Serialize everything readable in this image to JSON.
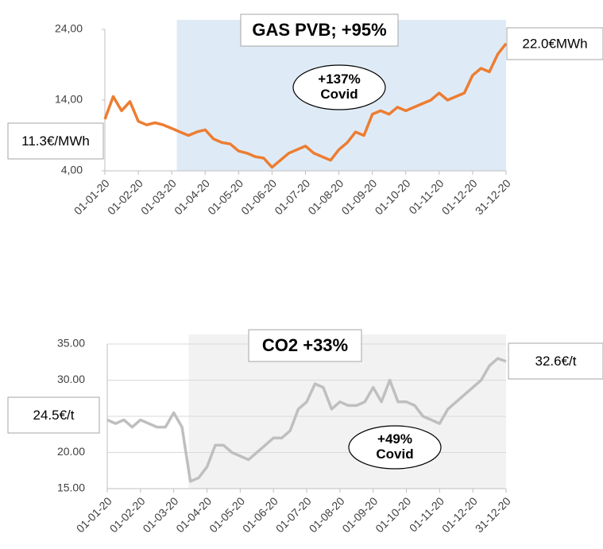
{
  "chart_data": [
    {
      "type": "line",
      "title": "GAS PVB; +95%",
      "start_label": "11.3€/MWh",
      "end_label": "22.0€MWh",
      "note": [
        "+137%",
        "Covid"
      ],
      "color": "#ed7d31",
      "shade": "#deebf7",
      "categories": [
        "01-01-20",
        null,
        null,
        null,
        "01-02-20",
        null,
        null,
        null,
        "01-03-20",
        null,
        null,
        null,
        "01-04-20",
        null,
        null,
        null,
        "01-05-20",
        null,
        null,
        null,
        "01-06-20",
        null,
        null,
        null,
        "01-07-20",
        null,
        null,
        null,
        "01-08-20",
        null,
        null,
        null,
        "01-09-20",
        null,
        null,
        null,
        "01-10-20",
        null,
        null,
        null,
        "01-11-20",
        null,
        null,
        null,
        "01-12-20",
        null,
        null,
        null,
        "31-12-20"
      ],
      "values": [
        11.3,
        14.5,
        12.5,
        13.8,
        11.0,
        10.5,
        10.8,
        10.5,
        10.0,
        9.5,
        9.0,
        9.5,
        9.8,
        8.5,
        8.0,
        7.8,
        6.8,
        6.5,
        6.0,
        5.8,
        4.5,
        5.5,
        6.5,
        7.0,
        7.5,
        6.5,
        6.0,
        5.5,
        7.0,
        8.0,
        9.5,
        9.0,
        12.0,
        12.5,
        12.0,
        13.0,
        12.5,
        13.0,
        13.5,
        14.0,
        15.0,
        14.0,
        14.5,
        15.0,
        17.5,
        18.5,
        18.0,
        20.5,
        22.0
      ],
      "ylim": [
        4,
        24
      ],
      "yticks": [
        {
          "value": 4,
          "label": "4,00"
        },
        {
          "value": 14,
          "label": "14,00"
        },
        {
          "value": 24,
          "label": "24,00"
        }
      ],
      "grid": false
    },
    {
      "type": "line",
      "title": "CO2 +33%",
      "start_label": "24.5€/t",
      "end_label": "32.6€/t",
      "note": [
        "+49%",
        "Covid"
      ],
      "color": "#bfbfbf",
      "shade": "#f2f2f2",
      "categories": [
        "01-01-20",
        null,
        null,
        null,
        "01-02-20",
        null,
        null,
        null,
        "01-03-20",
        null,
        null,
        null,
        "01-04-20",
        null,
        null,
        null,
        "01-05-20",
        null,
        null,
        null,
        "01-06-20",
        null,
        null,
        null,
        "01-07-20",
        null,
        null,
        null,
        "01-08-20",
        null,
        null,
        null,
        "01-09-20",
        null,
        null,
        null,
        "01-10-20",
        null,
        null,
        null,
        "01-11-20",
        null,
        null,
        null,
        "01-12-20",
        null,
        null,
        null,
        "31-12-20"
      ],
      "values": [
        24.5,
        24.0,
        24.5,
        23.5,
        24.5,
        24.0,
        23.5,
        23.5,
        25.5,
        23.5,
        16.0,
        16.5,
        18.0,
        21.0,
        21.0,
        20.0,
        19.5,
        19.0,
        20.0,
        21.0,
        22.0,
        22.0,
        23.0,
        26.0,
        27.0,
        29.5,
        29.0,
        26.0,
        27.0,
        26.5,
        26.5,
        27.0,
        29.0,
        27.0,
        30.0,
        27.0,
        27.0,
        26.5,
        25.0,
        24.5,
        24.0,
        26.0,
        27.0,
        28.0,
        29.0,
        30.0,
        32.0,
        33.0,
        32.6
      ],
      "ylim": [
        15,
        35
      ],
      "yticks": [
        {
          "value": 15,
          "label": "15.00"
        },
        {
          "value": 20,
          "label": "20.00"
        },
        {
          "value": 25,
          "label": "25.00"
        },
        {
          "value": 30,
          "label": "30.00"
        },
        {
          "value": 35,
          "label": "35.00"
        }
      ],
      "grid": true
    }
  ]
}
